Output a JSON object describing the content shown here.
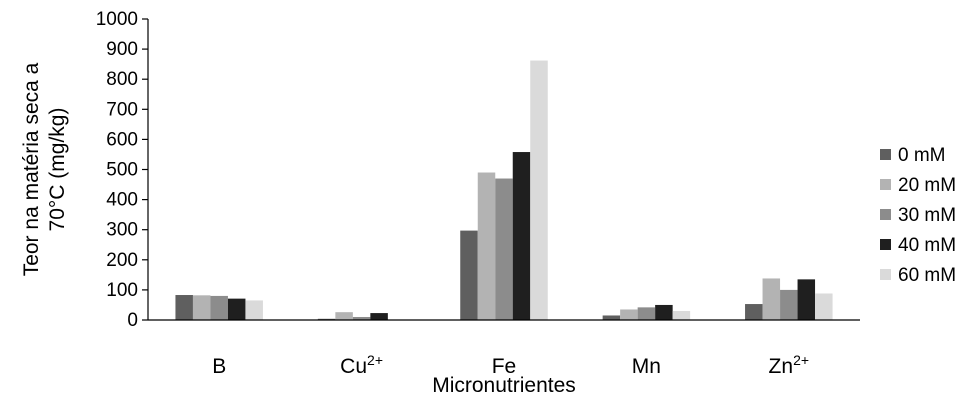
{
  "chart_data": {
    "type": "bar",
    "categories": [
      {
        "base": "B",
        "sup": ""
      },
      {
        "base": "Cu",
        "sup": "2+"
      },
      {
        "base": "Fe",
        "sup": ""
      },
      {
        "base": "Mn",
        "sup": ""
      },
      {
        "base": "Zn",
        "sup": "2+"
      }
    ],
    "series": [
      {
        "name": "0 mM",
        "color": "#5f5f5f",
        "values": [
          83,
          4,
          297,
          15,
          53
        ]
      },
      {
        "name": "20 mM",
        "color": "#b3b3b3",
        "values": [
          82,
          26,
          490,
          35,
          138
        ]
      },
      {
        "name": "30 mM",
        "color": "#8c8c8c",
        "values": [
          80,
          10,
          470,
          42,
          100
        ]
      },
      {
        "name": "40 mM",
        "color": "#1f1f1f",
        "values": [
          71,
          23,
          558,
          50,
          135
        ]
      },
      {
        "name": "60 mM",
        "color": "#dadada",
        "values": [
          65,
          0,
          862,
          30,
          88
        ]
      }
    ],
    "xlabel": "Micronutrientes",
    "ylabel_lines": [
      "Teor na matéria seca a",
      "70°C (mg/kg)"
    ],
    "ylim": [
      0,
      1000
    ],
    "yticks": [
      0,
      100,
      200,
      300,
      400,
      500,
      600,
      700,
      800,
      900,
      1000
    ],
    "grid": false,
    "legend_position": "right"
  }
}
